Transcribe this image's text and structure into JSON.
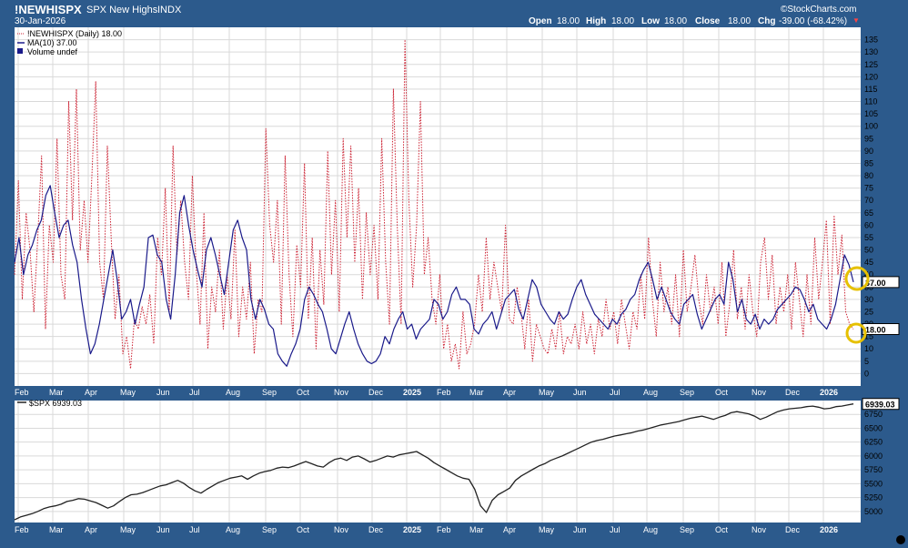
{
  "header": {
    "symbol": "!NEWHISPX",
    "description": "SPX New Highs",
    "exchange": "INDX",
    "date": "30-Jan-2026",
    "watermark": "©StockCharts.com",
    "open_label": "Open",
    "open_value": "18.00",
    "high_label": "High",
    "high_value": "18.00",
    "low_label": "Low",
    "low_value": "18.00",
    "close_label": "Close",
    "close_value": "18.00",
    "chg_label": "Chg",
    "chg_value": "-39.00 (-68.42%)",
    "chg_arrow": "▼"
  },
  "legend": {
    "series1": "!NEWHISPX (Daily) 18.00",
    "series2": "MA(10) 37.00",
    "series3": "Volume undef",
    "lower": "$SPX 6939.03"
  },
  "value_tags": {
    "ma_last": "37.00",
    "newhigh_last": "18.00",
    "spx_last": "6939.03"
  },
  "colors": {
    "frame": "#2c5a8c",
    "panel": "#ffffff",
    "grid": "#d9d9d9",
    "newhighs": "#cc2233",
    "ma": "#1a1a8a",
    "spx": "#222222",
    "highlight": "#e6c000"
  },
  "chart_data": [
    {
      "type": "line",
      "title": "SPX New Highs",
      "ylim": [
        -5,
        140
      ],
      "yticks": [
        0,
        5,
        10,
        15,
        20,
        25,
        30,
        35,
        40,
        45,
        50,
        55,
        60,
        65,
        70,
        75,
        80,
        85,
        90,
        95,
        100,
        105,
        110,
        115,
        120,
        125,
        130,
        135
      ],
      "x_tick_labels": [
        "Feb",
        "Mar",
        "Apr",
        "May",
        "Jun",
        "Jul",
        "Aug",
        "Sep",
        "Oct",
        "Nov",
        "Dec",
        "2025",
        "Feb",
        "Mar",
        "Apr",
        "May",
        "Jun",
        "Jul",
        "Aug",
        "Sep",
        "Oct",
        "Nov",
        "Dec",
        "2026"
      ],
      "grid": true,
      "series": [
        {
          "name": "!NEWHISPX (Daily)",
          "style": "dotted",
          "values": [
            40,
            78,
            30,
            65,
            50,
            25,
            55,
            88,
            18,
            60,
            45,
            95,
            40,
            30,
            110,
            62,
            115,
            50,
            70,
            45,
            80,
            118,
            45,
            30,
            92,
            55,
            22,
            40,
            8,
            15,
            2,
            22,
            18,
            27,
            20,
            32,
            12,
            55,
            40,
            75,
            25,
            92,
            48,
            70,
            45,
            30,
            80,
            42,
            20,
            65,
            10,
            35,
            25,
            50,
            18,
            40,
            22,
            58,
            15,
            35,
            22,
            45,
            8,
            30,
            25,
            99,
            60,
            45,
            70,
            20,
            88,
            40,
            15,
            52,
            35,
            85,
            22,
            55,
            10,
            50,
            28,
            90,
            40,
            70,
            25,
            95,
            55,
            92,
            45,
            75,
            30,
            65,
            40,
            60,
            30,
            95,
            45,
            20,
            115,
            60,
            20,
            135,
            70,
            35,
            60,
            110,
            40,
            55,
            30,
            20,
            40,
            10,
            20,
            5,
            12,
            2,
            25,
            8,
            12,
            20,
            40,
            25,
            55,
            30,
            45,
            35,
            25,
            60,
            22,
            20,
            35,
            25,
            10,
            30,
            5,
            20,
            15,
            10,
            8,
            18,
            10,
            25,
            8,
            15,
            12,
            20,
            10,
            25,
            12,
            20,
            8,
            22,
            15,
            30,
            18,
            25,
            12,
            30,
            20,
            10,
            25,
            18,
            40,
            22,
            55,
            30,
            15,
            45,
            25,
            35,
            20,
            40,
            15,
            50,
            25,
            35,
            48,
            30,
            20,
            40,
            25,
            35,
            20,
            45,
            15,
            28,
            50,
            22,
            35,
            18,
            40,
            25,
            15,
            45,
            55,
            30,
            48,
            20,
            35,
            25,
            40,
            18,
            45,
            30,
            15,
            40,
            20,
            55,
            30,
            45,
            62,
            20,
            64,
            40,
            56,
            25,
            20,
            18
          ]
        },
        {
          "name": "MA(10)",
          "style": "solid",
          "values": [
            45,
            55,
            40,
            48,
            52,
            58,
            62,
            72,
            76,
            65,
            55,
            60,
            62,
            52,
            45,
            30,
            18,
            8,
            12,
            20,
            30,
            40,
            50,
            38,
            22,
            25,
            30,
            20,
            28,
            35,
            55,
            56,
            48,
            45,
            30,
            22,
            40,
            65,
            72,
            60,
            50,
            42,
            35,
            50,
            55,
            48,
            40,
            32,
            45,
            58,
            62,
            55,
            50,
            30,
            22,
            30,
            26,
            20,
            18,
            8,
            5,
            3,
            8,
            12,
            18,
            30,
            35,
            32,
            28,
            25,
            18,
            10,
            8,
            14,
            20,
            25,
            18,
            12,
            8,
            5,
            4,
            5,
            8,
            15,
            12,
            18,
            22,
            25,
            18,
            20,
            14,
            18,
            20,
            22,
            30,
            28,
            22,
            25,
            32,
            35,
            30,
            30,
            28,
            18,
            16,
            20,
            22,
            25,
            18,
            24,
            30,
            32,
            34,
            26,
            22,
            30,
            38,
            35,
            28,
            25,
            22,
            20,
            25,
            22,
            24,
            30,
            35,
            38,
            32,
            28,
            24,
            22,
            20,
            18,
            22,
            20,
            24,
            26,
            30,
            32,
            38,
            42,
            45,
            38,
            30,
            35,
            30,
            25,
            22,
            20,
            28,
            30,
            32,
            24,
            18,
            22,
            26,
            30,
            32,
            28,
            45,
            38,
            25,
            30,
            22,
            20,
            24,
            18,
            22,
            20,
            22,
            26,
            28,
            30,
            32,
            35,
            34,
            30,
            25,
            28,
            22,
            20,
            18,
            22,
            28,
            38,
            48,
            44,
            37
          ]
        }
      ]
    },
    {
      "type": "line",
      "title": "$SPX",
      "ylim": [
        4800,
        7000
      ],
      "yticks": [
        5000,
        5250,
        5500,
        5750,
        6000,
        6250,
        6500,
        6750
      ],
      "x_tick_labels": [
        "Feb",
        "Mar",
        "Apr",
        "May",
        "Jun",
        "Jul",
        "Aug",
        "Sep",
        "Oct",
        "Nov",
        "Dec",
        "2025",
        "Feb",
        "Mar",
        "Apr",
        "May",
        "Jun",
        "Jul",
        "Aug",
        "Sep",
        "Oct",
        "Nov",
        "Dec",
        "2026"
      ],
      "grid": true,
      "series": [
        {
          "name": "$SPX",
          "values": [
            4850,
            4900,
            4930,
            4960,
            5000,
            5050,
            5080,
            5100,
            5130,
            5180,
            5200,
            5230,
            5220,
            5190,
            5160,
            5110,
            5060,
            5100,
            5180,
            5250,
            5300,
            5310,
            5340,
            5380,
            5420,
            5460,
            5480,
            5520,
            5560,
            5510,
            5430,
            5370,
            5330,
            5400,
            5460,
            5520,
            5560,
            5600,
            5620,
            5640,
            5580,
            5640,
            5690,
            5720,
            5740,
            5780,
            5800,
            5790,
            5820,
            5860,
            5900,
            5860,
            5820,
            5800,
            5880,
            5940,
            5960,
            5920,
            5980,
            6000,
            5950,
            5890,
            5920,
            5960,
            6000,
            5980,
            6020,
            6040,
            6060,
            6080,
            6020,
            5960,
            5880,
            5820,
            5760,
            5700,
            5640,
            5600,
            5580,
            5400,
            5100,
            4980,
            5200,
            5300,
            5360,
            5420,
            5560,
            5640,
            5700,
            5760,
            5820,
            5860,
            5920,
            5960,
            6000,
            6050,
            6100,
            6150,
            6200,
            6250,
            6280,
            6300,
            6330,
            6360,
            6380,
            6400,
            6420,
            6450,
            6470,
            6500,
            6530,
            6560,
            6580,
            6600,
            6620,
            6650,
            6680,
            6700,
            6720,
            6690,
            6660,
            6700,
            6730,
            6780,
            6800,
            6780,
            6760,
            6720,
            6660,
            6700,
            6750,
            6800,
            6830,
            6850,
            6860,
            6870,
            6890,
            6900,
            6880,
            6850,
            6860,
            6890,
            6900,
            6920,
            6939
          ]
        }
      ]
    }
  ]
}
